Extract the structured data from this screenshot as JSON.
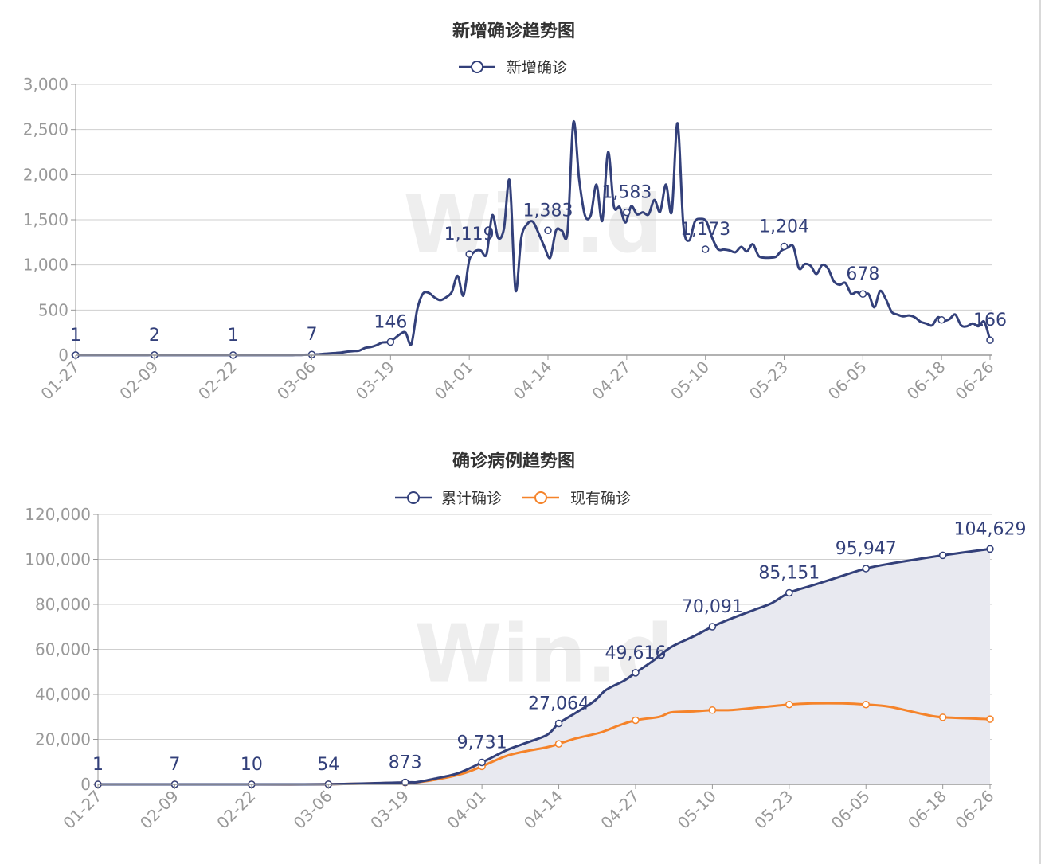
{
  "colors": {
    "primary": "#33407a",
    "secondary": "#f5832a",
    "area_fill": "#e8e9f0",
    "axis": "#999999",
    "grid": "#cfcfcf",
    "title": "#333333",
    "watermark": "#eeeeee"
  },
  "watermark": "Win.d",
  "chart_data": [
    {
      "type": "line",
      "title": "新增确诊趋势图",
      "legend": [
        "新增确诊"
      ],
      "legend_position": "top-center",
      "grid": true,
      "ylim": [
        0,
        3000
      ],
      "yticks": [
        0,
        500,
        1000,
        1500,
        2000,
        2500,
        3000
      ],
      "ytick_labels": [
        "0",
        "500",
        "1,000",
        "1,500",
        "2,000",
        "2,500",
        "3,000"
      ],
      "xticks": [
        "01-27",
        "02-09",
        "02-22",
        "03-06",
        "03-19",
        "04-01",
        "04-14",
        "04-27",
        "05-10",
        "05-23",
        "06-05",
        "06-18",
        "06-26"
      ],
      "series": [
        {
          "name": "新增确诊",
          "values": [
            1,
            1,
            1,
            1,
            1,
            1,
            1,
            1,
            1,
            1,
            1,
            1,
            1,
            2,
            1,
            1,
            1,
            1,
            1,
            1,
            1,
            1,
            1,
            1,
            1,
            1,
            1,
            1,
            1,
            1,
            1,
            1,
            1,
            1,
            1,
            1,
            1,
            1,
            2,
            3,
            5,
            7,
            10,
            15,
            20,
            25,
            30,
            40,
            45,
            50,
            80,
            90,
            110,
            140,
            146,
            180,
            230,
            250,
            120,
            500,
            680,
            690,
            640,
            610,
            640,
            700,
            880,
            660,
            1050,
            1150,
            1160,
            1119,
            1550,
            1300,
            1400,
            1930,
            720,
            1300,
            1450,
            1480,
            1350,
            1200,
            1080,
            1383,
            1380,
            1370,
            2580,
            1950,
            1550,
            1550,
            1890,
            1490,
            2250,
            1650,
            1640,
            1470,
            1650,
            1560,
            1583,
            1560,
            1720,
            1590,
            1890,
            1590,
            2570,
            1450,
            1270,
            1480,
            1510,
            1480,
            1300,
            1173,
            1170,
            1160,
            1140,
            1200,
            1150,
            1230,
            1100,
            1080,
            1080,
            1090,
            1160,
            1190,
            1204,
            960,
            1010,
            990,
            900,
            1000,
            960,
            820,
            780,
            800,
            680,
            700,
            650,
            678,
            530,
            710,
            620,
            480,
            450,
            430,
            440,
            420,
            370,
            350,
            330,
            420,
            380,
            400,
            450,
            330,
            320,
            350,
            320,
            370,
            166
          ],
          "labeled_points": [
            {
              "date": "01-27",
              "value": 1,
              "label": "1"
            },
            {
              "date": "02-09",
              "value": 2,
              "label": "2"
            },
            {
              "date": "02-22",
              "value": 1,
              "label": "1"
            },
            {
              "date": "03-06",
              "value": 7,
              "label": "7"
            },
            {
              "date": "03-19",
              "value": 146,
              "label": "146"
            },
            {
              "date": "04-01",
              "value": 1119,
              "label": "1,119"
            },
            {
              "date": "04-14",
              "value": 1383,
              "label": "1,383"
            },
            {
              "date": "04-27",
              "value": 1583,
              "label": "1,583"
            },
            {
              "date": "05-10",
              "value": 1173,
              "label": "1,173"
            },
            {
              "date": "05-23",
              "value": 1204,
              "label": "1,204"
            },
            {
              "date": "06-05",
              "value": 678,
              "label": "678"
            },
            {
              "date": "06-18",
              "value": 390,
              "label": ""
            },
            {
              "date": "06-26",
              "value": 166,
              "label": "166"
            }
          ]
        }
      ]
    },
    {
      "type": "area",
      "title": "确诊病例趋势图",
      "legend": [
        "累计确诊",
        "现有确诊"
      ],
      "legend_position": "top-center",
      "grid": true,
      "ylim": [
        0,
        120000
      ],
      "yticks": [
        0,
        20000,
        40000,
        60000,
        80000,
        100000,
        120000
      ],
      "ytick_labels": [
        "0",
        "20,000",
        "40,000",
        "60,000",
        "80,000",
        "100,000",
        "120,000"
      ],
      "xticks": [
        "01-27",
        "02-09",
        "02-22",
        "03-06",
        "03-19",
        "04-01",
        "04-14",
        "04-27",
        "05-10",
        "05-23",
        "06-05",
        "06-18",
        "06-26"
      ],
      "series": [
        {
          "name": "累计确诊",
          "points": [
            [
              0,
              1
            ],
            [
              13,
              7
            ],
            [
              26,
              10
            ],
            [
              39,
              54
            ],
            [
              52,
              873
            ],
            [
              54,
              1000
            ],
            [
              57,
              2500
            ],
            [
              61,
              5000
            ],
            [
              65,
              9731
            ],
            [
              69,
              15000
            ],
            [
              72,
              18000
            ],
            [
              76,
              22000
            ],
            [
              78,
              27064
            ],
            [
              81,
              32000
            ],
            [
              84,
              37000
            ],
            [
              86,
              42000
            ],
            [
              89,
              46000
            ],
            [
              91,
              49616
            ],
            [
              94,
              55000
            ],
            [
              97,
              61000
            ],
            [
              101,
              66000
            ],
            [
              104,
              70091
            ],
            [
              107,
              73500
            ],
            [
              111,
              77500
            ],
            [
              114,
              80500
            ],
            [
              117,
              85151
            ],
            [
              121,
              88500
            ],
            [
              124,
              91000
            ],
            [
              130,
              95947
            ],
            [
              135,
              98500
            ],
            [
              143,
              101800
            ],
            [
              151,
              104629
            ]
          ],
          "labels": [
            {
              "index": 0,
              "label": "1"
            },
            {
              "index": 1,
              "label": "7"
            },
            {
              "index": 2,
              "label": "10"
            },
            {
              "index": 3,
              "label": "54"
            },
            {
              "index": 4,
              "label": "873"
            },
            {
              "index": 8,
              "label": "9,731"
            },
            {
              "index": 12,
              "label": "27,064"
            },
            {
              "index": 17,
              "label": "49,616"
            },
            {
              "index": 21,
              "label": "70,091"
            },
            {
              "index": 25,
              "label": "85,151"
            },
            {
              "index": 28,
              "label": "95,947"
            },
            {
              "index": 31,
              "label": "104,629"
            }
          ]
        },
        {
          "name": "现有确诊",
          "points": [
            [
              0,
              1
            ],
            [
              13,
              7
            ],
            [
              26,
              10
            ],
            [
              39,
              50
            ],
            [
              52,
              800
            ],
            [
              54,
              900
            ],
            [
              58,
              2500
            ],
            [
              62,
              5000
            ],
            [
              65,
              8000
            ],
            [
              69,
              12500
            ],
            [
              72,
              14500
            ],
            [
              76,
              16500
            ],
            [
              78,
              18000
            ],
            [
              81,
              20500
            ],
            [
              85,
              23000
            ],
            [
              88,
              26000
            ],
            [
              91,
              28500
            ],
            [
              95,
              30000
            ],
            [
              97,
              32000
            ],
            [
              101,
              32500
            ],
            [
              104,
              33000
            ],
            [
              107,
              33000
            ],
            [
              111,
              34000
            ],
            [
              117,
              35500
            ],
            [
              121,
              36000
            ],
            [
              126,
              36000
            ],
            [
              130,
              35500
            ],
            [
              134,
              34500
            ],
            [
              140,
              31000
            ],
            [
              143,
              29800
            ],
            [
              151,
              29000
            ]
          ]
        }
      ]
    }
  ]
}
